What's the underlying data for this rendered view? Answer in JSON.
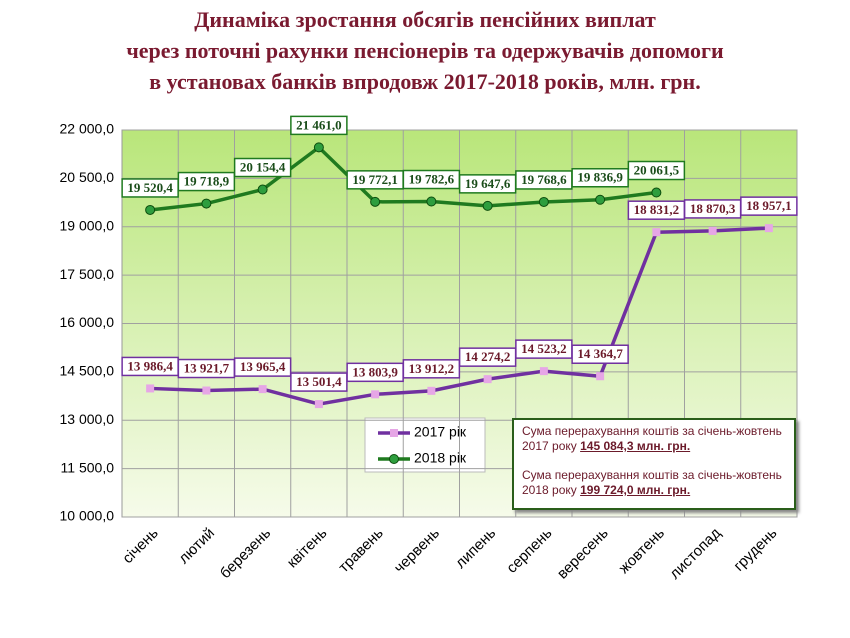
{
  "chart_data": {
    "type": "line",
    "title": [
      "Динаміка зростання обсягів пенсійних виплат",
      "через поточні рахунки пенсіонерів та одержувачів допомоги",
      "в установах банків впродовж 2017-2018 років, млн. грн."
    ],
    "categories": [
      "січень",
      "лютий",
      "березень",
      "квітень",
      "травень",
      "червень",
      "липень",
      "серпень",
      "вересень",
      "жовтень",
      "листопад",
      "грудень"
    ],
    "series": [
      {
        "name": "2017 рік",
        "color": "#7030a0",
        "marker_color": "#e6a6e6",
        "marker": "square",
        "values": [
          13986.4,
          13921.7,
          13965.4,
          13501.4,
          13803.9,
          13912.2,
          14274.2,
          14523.2,
          14364.7,
          18831.2,
          18870.3,
          18957.1
        ],
        "value_labels": [
          "13 986,4",
          "13 921,7",
          "13 965,4",
          "13 501,4",
          "13 803,9",
          "13 912,2",
          "14 274,2",
          "14 523,2",
          "14 364,7",
          "18 831,2",
          "18 870,3",
          "18 957,1"
        ]
      },
      {
        "name": "2018 рік",
        "color": "#1f7a1f",
        "marker_color": "#2e9e3e",
        "marker": "circle",
        "values": [
          19520.4,
          19718.9,
          20154.4,
          21461.0,
          19772.1,
          19782.6,
          19647.6,
          19768.6,
          19836.9,
          20061.5,
          null,
          null
        ],
        "value_labels": [
          "19 520,4",
          "19 718,9",
          "20 154,4",
          "21 461,0",
          "19 772,1",
          "19 782,6",
          "19 647,6",
          "19 768,6",
          "19 836,9",
          "20 061,5",
          null,
          null
        ]
      }
    ],
    "ylim": [
      10000,
      22000
    ],
    "yticks": [
      {
        "value": 10000,
        "label": "10 000,0"
      },
      {
        "value": 11500,
        "label": "11 500,0"
      },
      {
        "value": 13000,
        "label": "13 000,0"
      },
      {
        "value": 14500,
        "label": "14 500,0"
      },
      {
        "value": 16000,
        "label": "16 000,0"
      },
      {
        "value": 17500,
        "label": "17 500,0"
      },
      {
        "value": 19000,
        "label": "19 000,0"
      },
      {
        "value": 20500,
        "label": "20 500,0"
      },
      {
        "value": 22000,
        "label": "22 000,0"
      }
    ],
    "grid": true,
    "annotations": [
      {
        "text": "Сума перерахування коштів  за січень-жовтень 2017 року",
        "value": "145 084,3 млн. грн."
      },
      {
        "text": "Сума перерахування коштів  за січень-жовтень 2018 року",
        "value": "199 724,0 млн. грн."
      }
    ]
  }
}
